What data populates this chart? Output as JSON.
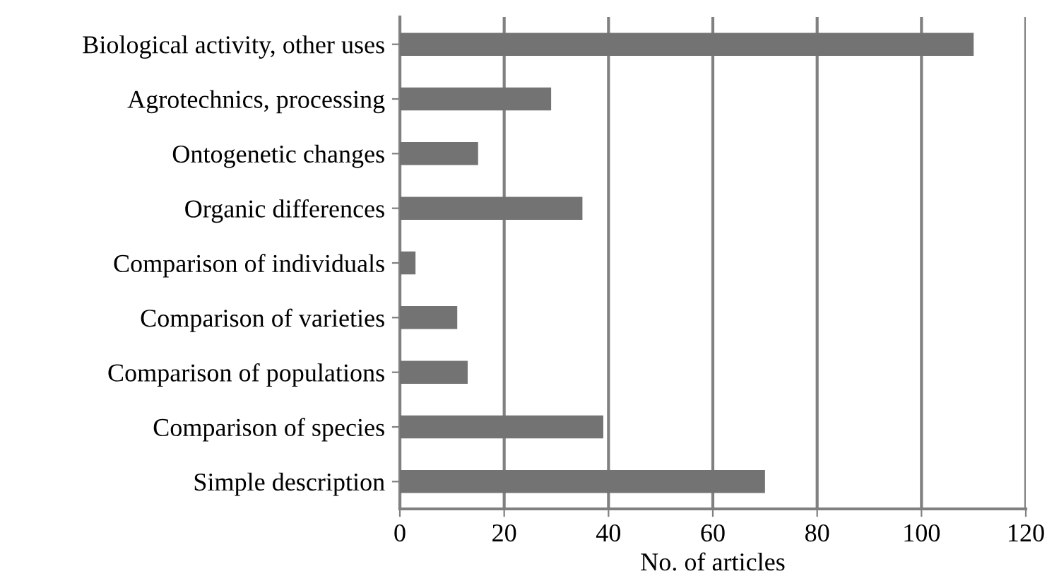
{
  "chart_data": {
    "type": "bar",
    "orientation": "horizontal",
    "categories": [
      "Biological activity, other uses",
      "Agrotechnics, processing",
      "Ontogenetic changes",
      "Organic differences",
      "Comparison of individuals",
      "Comparison of varieties",
      "Comparison of populations",
      "Comparison of species",
      "Simple description"
    ],
    "values": [
      110,
      29,
      15,
      35,
      3,
      11,
      13,
      39,
      70
    ],
    "color": "#737373",
    "xlabel": "No. of articles",
    "xlim": [
      0,
      120
    ],
    "xticks": [
      0,
      20,
      40,
      60,
      80,
      100,
      120
    ],
    "grid": "x"
  }
}
